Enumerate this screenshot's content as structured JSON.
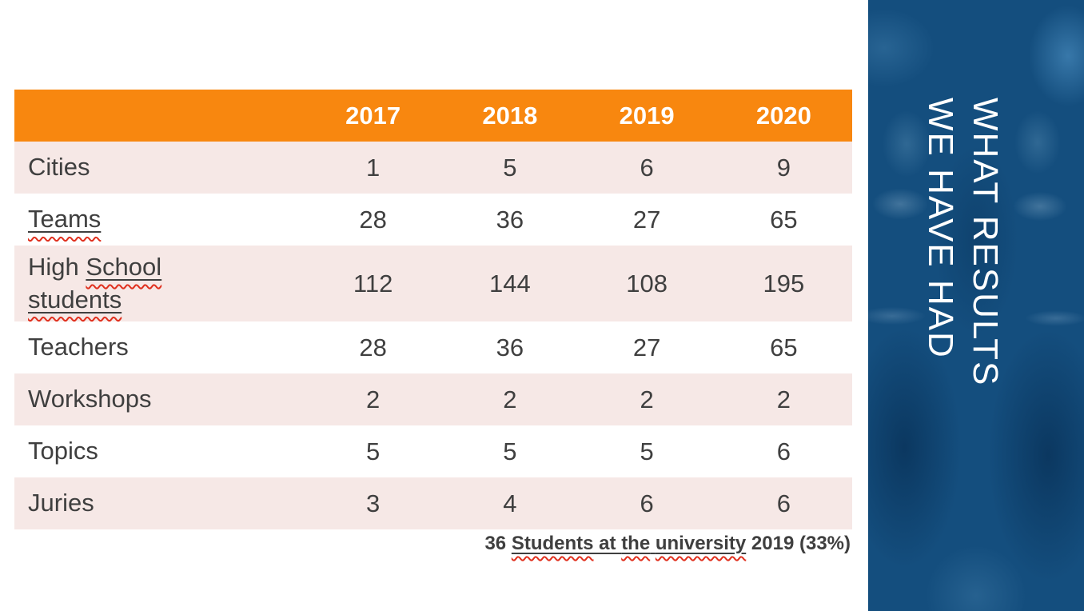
{
  "palette": {
    "header_orange": "#F8870F",
    "stripe_pink": "#F6E8E6",
    "table_text": "#3F3F3F",
    "sidebar_blue": "#144E7E",
    "sidebar_text": "#FFFFFF",
    "spellcheck_red": "#E0301E"
  },
  "table": {
    "header": {
      "labels": [
        "2017",
        "2018",
        "2019",
        "2020"
      ]
    },
    "rows": [
      {
        "label_plain": "Cities",
        "label_flagged": "",
        "values": [
          "1",
          "5",
          "6",
          "9"
        ]
      },
      {
        "label_plain": "",
        "label_flagged": "Teams",
        "values": [
          "28",
          "36",
          "27",
          "65"
        ]
      },
      {
        "label_plain": "High ",
        "label_flagged": "School students",
        "values": [
          "112",
          "144",
          "108",
          "195"
        ]
      },
      {
        "label_plain": "Teachers",
        "label_flagged": "",
        "values": [
          "28",
          "36",
          "27",
          "65"
        ]
      },
      {
        "label_plain": "Workshops",
        "label_flagged": "",
        "values": [
          "2",
          "2",
          "2",
          "2"
        ]
      },
      {
        "label_plain": "Topics",
        "label_flagged": "",
        "values": [
          "5",
          "5",
          "5",
          "6"
        ]
      },
      {
        "label_plain": "Juries",
        "label_flagged": "",
        "values": [
          "3",
          "4",
          "6",
          "6"
        ]
      }
    ]
  },
  "footer": {
    "prefix": "36 ",
    "w1": "Students",
    "mid1": " at ",
    "w2": "the",
    "mid2": " ",
    "w3": "university",
    "suffix": " 2019 (33%)"
  },
  "sidebar": {
    "title_line1": "WHAT RESULTS",
    "title_line2": "WE HAVE HAD"
  },
  "chart_data": {
    "type": "table",
    "categories": [
      "2017",
      "2018",
      "2019",
      "2020"
    ],
    "series": [
      {
        "name": "Cities",
        "values": [
          1,
          5,
          6,
          9
        ]
      },
      {
        "name": "Teams",
        "values": [
          28,
          36,
          27,
          65
        ]
      },
      {
        "name": "High School students",
        "values": [
          112,
          144,
          108,
          195
        ]
      },
      {
        "name": "Teachers",
        "values": [
          28,
          36,
          27,
          65
        ]
      },
      {
        "name": "Workshops",
        "values": [
          2,
          2,
          2,
          2
        ]
      },
      {
        "name": "Topics",
        "values": [
          5,
          5,
          5,
          6
        ]
      },
      {
        "name": "Juries",
        "values": [
          3,
          4,
          6,
          6
        ]
      }
    ],
    "annotation": "36 Students at the university 2019 (33%)"
  }
}
